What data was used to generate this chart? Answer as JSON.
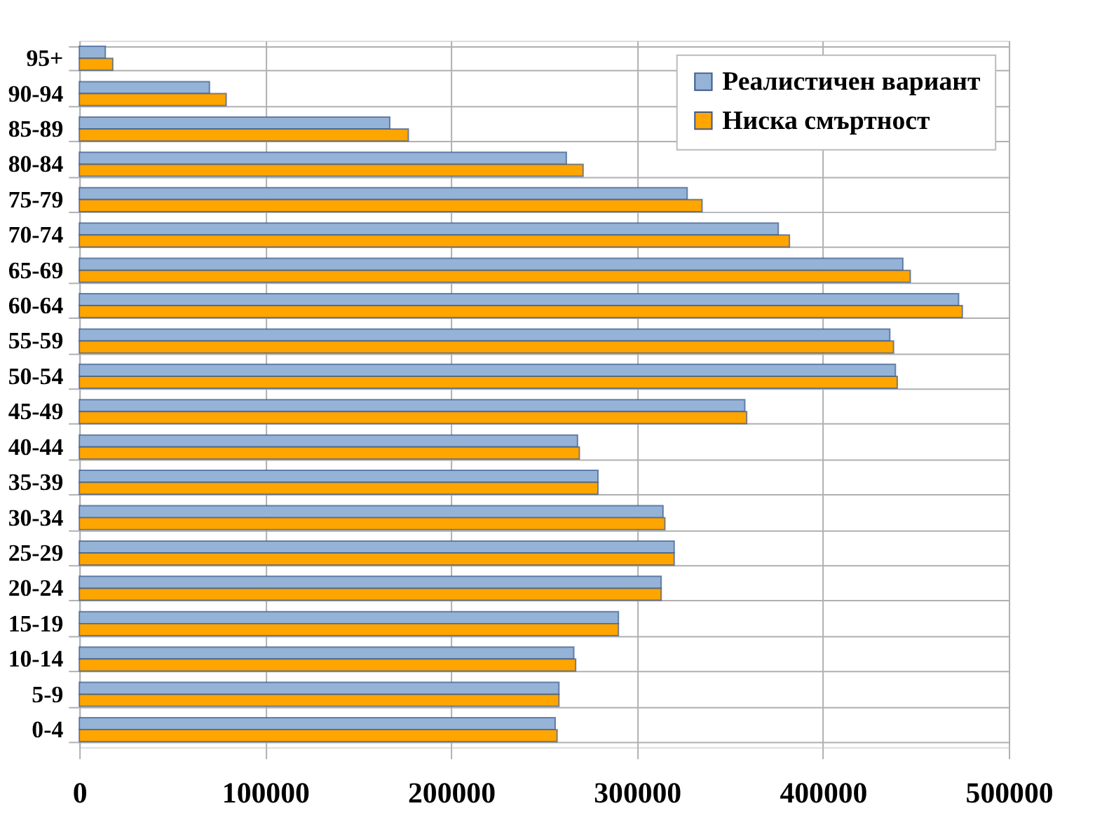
{
  "chart_data": {
    "type": "bar",
    "orientation": "horizontal",
    "categories": [
      "95+",
      "90-94",
      "85-89",
      "80-84",
      "75-79",
      "70-74",
      "65-69",
      "60-64",
      "55-59",
      "50-54",
      "45-49",
      "40-44",
      "35-39",
      "30-34",
      "25-29",
      "20-24",
      "15-19",
      "10-14",
      "5-9",
      "0-4"
    ],
    "series": [
      {
        "name": "Реалистичен вариант",
        "color": "#95b3d7",
        "values": [
          14000,
          70000,
          167000,
          262000,
          327000,
          376000,
          443000,
          473000,
          436000,
          439000,
          358000,
          268000,
          279000,
          314000,
          320000,
          313000,
          290000,
          266000,
          258000,
          256000
        ]
      },
      {
        "name": "Ниска смъртност",
        "color": "#ffa500",
        "values": [
          18000,
          79000,
          177000,
          271000,
          335000,
          382000,
          447000,
          475000,
          438000,
          440000,
          359000,
          269000,
          279000,
          315000,
          320000,
          313000,
          290000,
          267000,
          258000,
          257000
        ]
      }
    ],
    "xlim": [
      0,
      500000
    ],
    "xticks": [
      0,
      100000,
      200000,
      300000,
      400000,
      500000
    ],
    "grid": true,
    "legend": "top right"
  }
}
